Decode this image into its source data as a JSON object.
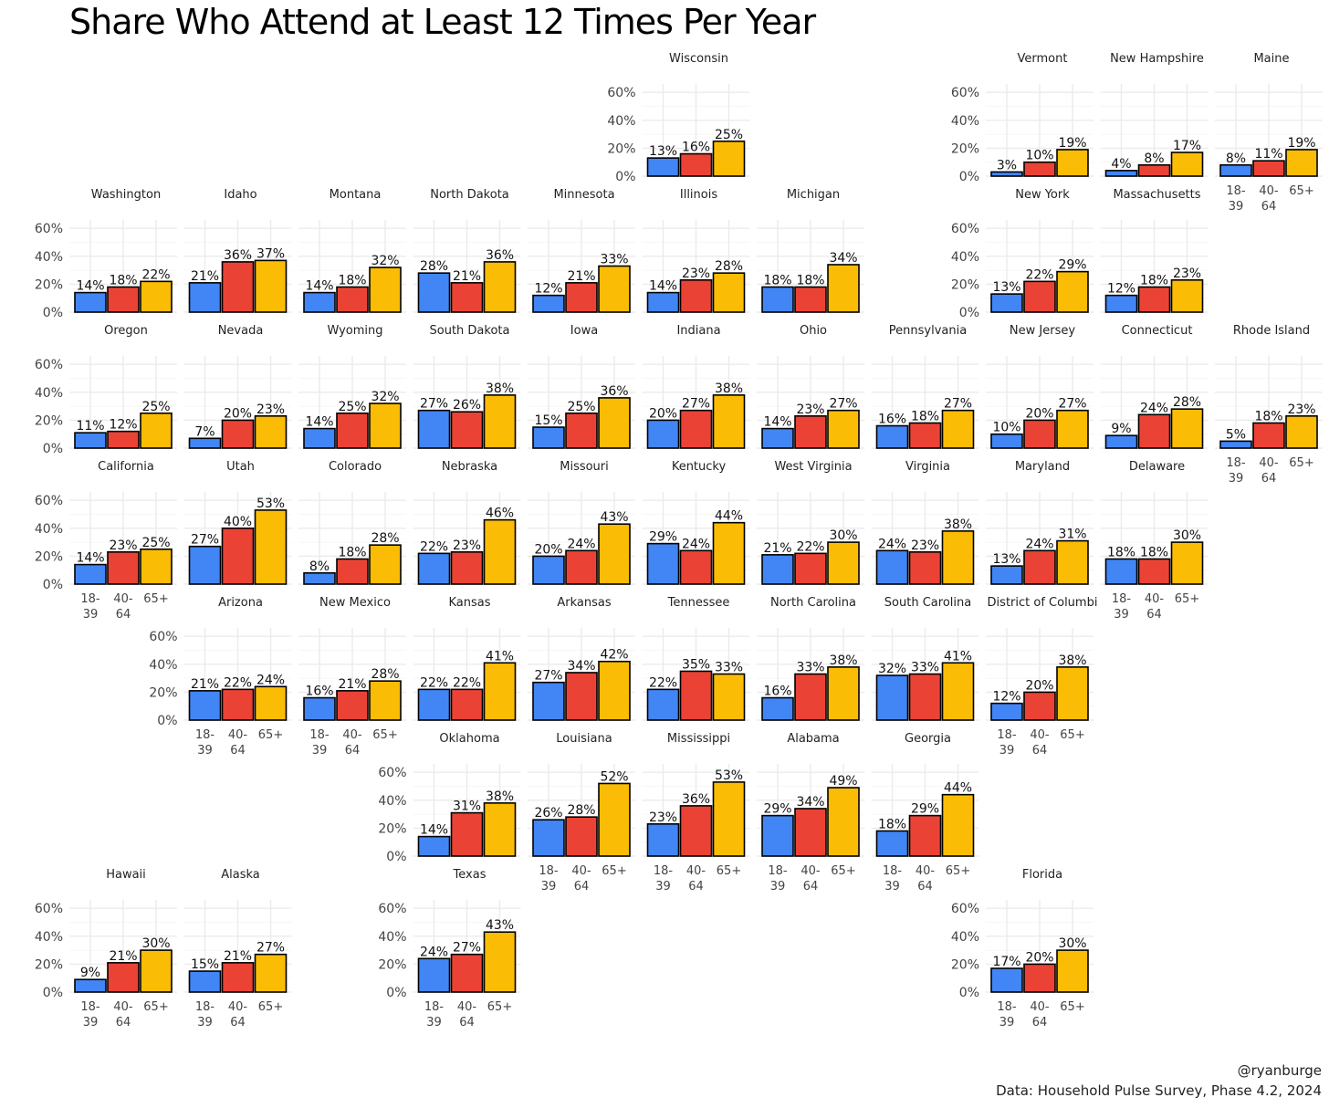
{
  "title": "Share Who Attend at Least 12 Times Per Year",
  "credit": "@ryanburge",
  "source": "Data: Household Pulse Survey, Phase 4.2, 2024",
  "colors": {
    "18-39": "#4285f4",
    "40-64": "#ea4335",
    "65+": "#fbbc05",
    "grid": "#ebebeb"
  },
  "chart_data": {
    "type": "bar",
    "layout": "faceted-geo-grid",
    "categories": [
      "18-39",
      "40-64",
      "65+"
    ],
    "category_tick_lines": [
      [
        "18-",
        "39"
      ],
      [
        "40-",
        "64"
      ],
      [
        "65+"
      ]
    ],
    "y_ticks": [
      0,
      20,
      40,
      60
    ],
    "y_tick_labels": [
      "0%",
      "20%",
      "40%",
      "60%"
    ],
    "ylim": [
      0,
      66
    ],
    "value_suffix": "%",
    "grid": true,
    "panels": [
      {
        "name": "Wisconsin",
        "row": 0,
        "col": 5,
        "values": [
          13,
          16,
          25
        ]
      },
      {
        "name": "Vermont",
        "row": 0,
        "col": 8,
        "values": [
          3,
          10,
          19
        ]
      },
      {
        "name": "New Hampshire",
        "row": 0,
        "col": 9,
        "values": [
          4,
          8,
          17
        ]
      },
      {
        "name": "Maine",
        "row": 0,
        "col": 10,
        "values": [
          8,
          11,
          19
        ]
      },
      {
        "name": "Washington",
        "row": 1,
        "col": 0,
        "values": [
          14,
          18,
          22
        ]
      },
      {
        "name": "Idaho",
        "row": 1,
        "col": 1,
        "values": [
          21,
          36,
          37
        ]
      },
      {
        "name": "Montana",
        "row": 1,
        "col": 2,
        "values": [
          14,
          18,
          32
        ]
      },
      {
        "name": "North Dakota",
        "row": 1,
        "col": 3,
        "values": [
          28,
          21,
          36
        ]
      },
      {
        "name": "Minnesota",
        "row": 1,
        "col": 4,
        "values": [
          12,
          21,
          33
        ]
      },
      {
        "name": "Illinois",
        "row": 1,
        "col": 5,
        "values": [
          14,
          23,
          28
        ]
      },
      {
        "name": "Michigan",
        "row": 1,
        "col": 6,
        "values": [
          18,
          18,
          34
        ]
      },
      {
        "name": "New York",
        "row": 1,
        "col": 8,
        "values": [
          13,
          22,
          29
        ]
      },
      {
        "name": "Massachusetts",
        "row": 1,
        "col": 9,
        "values": [
          12,
          18,
          23
        ]
      },
      {
        "name": "Oregon",
        "row": 2,
        "col": 0,
        "values": [
          11,
          12,
          25
        ]
      },
      {
        "name": "Nevada",
        "row": 2,
        "col": 1,
        "values": [
          7,
          20,
          23
        ]
      },
      {
        "name": "Wyoming",
        "row": 2,
        "col": 2,
        "values": [
          14,
          25,
          32
        ]
      },
      {
        "name": "South Dakota",
        "row": 2,
        "col": 3,
        "values": [
          27,
          26,
          38
        ]
      },
      {
        "name": "Iowa",
        "row": 2,
        "col": 4,
        "values": [
          15,
          25,
          36
        ]
      },
      {
        "name": "Indiana",
        "row": 2,
        "col": 5,
        "values": [
          20,
          27,
          38
        ]
      },
      {
        "name": "Ohio",
        "row": 2,
        "col": 6,
        "values": [
          14,
          23,
          27
        ]
      },
      {
        "name": "Pennsylvania",
        "row": 2,
        "col": 7,
        "values": [
          16,
          18,
          27
        ]
      },
      {
        "name": "New Jersey",
        "row": 2,
        "col": 8,
        "values": [
          10,
          20,
          27
        ]
      },
      {
        "name": "Connecticut",
        "row": 2,
        "col": 9,
        "values": [
          9,
          24,
          28
        ]
      },
      {
        "name": "Rhode Island",
        "row": 2,
        "col": 10,
        "values": [
          5,
          18,
          23
        ]
      },
      {
        "name": "California",
        "row": 3,
        "col": 0,
        "values": [
          14,
          23,
          25
        ]
      },
      {
        "name": "Utah",
        "row": 3,
        "col": 1,
        "values": [
          27,
          40,
          53
        ]
      },
      {
        "name": "Colorado",
        "row": 3,
        "col": 2,
        "values": [
          8,
          18,
          28
        ]
      },
      {
        "name": "Nebraska",
        "row": 3,
        "col": 3,
        "values": [
          22,
          23,
          46
        ]
      },
      {
        "name": "Missouri",
        "row": 3,
        "col": 4,
        "values": [
          20,
          24,
          43
        ]
      },
      {
        "name": "Kentucky",
        "row": 3,
        "col": 5,
        "values": [
          29,
          24,
          44
        ]
      },
      {
        "name": "West Virginia",
        "row": 3,
        "col": 6,
        "values": [
          21,
          22,
          30
        ]
      },
      {
        "name": "Virginia",
        "row": 3,
        "col": 7,
        "values": [
          24,
          23,
          38
        ]
      },
      {
        "name": "Maryland",
        "row": 3,
        "col": 8,
        "values": [
          13,
          24,
          31
        ]
      },
      {
        "name": "Delaware",
        "row": 3,
        "col": 9,
        "values": [
          18,
          18,
          30
        ]
      },
      {
        "name": "Arizona",
        "row": 4,
        "col": 1,
        "values": [
          21,
          22,
          24
        ]
      },
      {
        "name": "New Mexico",
        "row": 4,
        "col": 2,
        "values": [
          16,
          21,
          28
        ]
      },
      {
        "name": "Kansas",
        "row": 4,
        "col": 3,
        "values": [
          22,
          22,
          41
        ]
      },
      {
        "name": "Arkansas",
        "row": 4,
        "col": 4,
        "values": [
          27,
          34,
          42
        ]
      },
      {
        "name": "Tennessee",
        "row": 4,
        "col": 5,
        "values": [
          22,
          35,
          33
        ]
      },
      {
        "name": "North Carolina",
        "row": 4,
        "col": 6,
        "values": [
          16,
          33,
          38
        ]
      },
      {
        "name": "South Carolina",
        "row": 4,
        "col": 7,
        "values": [
          32,
          33,
          41
        ]
      },
      {
        "name": "District of Columbi",
        "row": 4,
        "col": 8,
        "values": [
          12,
          20,
          38
        ]
      },
      {
        "name": "Oklahoma",
        "row": 5,
        "col": 3,
        "values": [
          14,
          31,
          38
        ]
      },
      {
        "name": "Louisiana",
        "row": 5,
        "col": 4,
        "values": [
          26,
          28,
          52
        ]
      },
      {
        "name": "Mississippi",
        "row": 5,
        "col": 5,
        "values": [
          23,
          36,
          53
        ]
      },
      {
        "name": "Alabama",
        "row": 5,
        "col": 6,
        "values": [
          29,
          34,
          49
        ]
      },
      {
        "name": "Georgia",
        "row": 5,
        "col": 7,
        "values": [
          18,
          29,
          44
        ]
      },
      {
        "name": "Hawaii",
        "row": 6,
        "col": 0,
        "values": [
          9,
          21,
          30
        ]
      },
      {
        "name": "Alaska",
        "row": 6,
        "col": 1,
        "values": [
          15,
          21,
          27
        ]
      },
      {
        "name": "Texas",
        "row": 6,
        "col": 3,
        "values": [
          24,
          27,
          43
        ]
      },
      {
        "name": "Florida",
        "row": 6,
        "col": 8,
        "values": [
          17,
          20,
          30
        ]
      }
    ]
  }
}
